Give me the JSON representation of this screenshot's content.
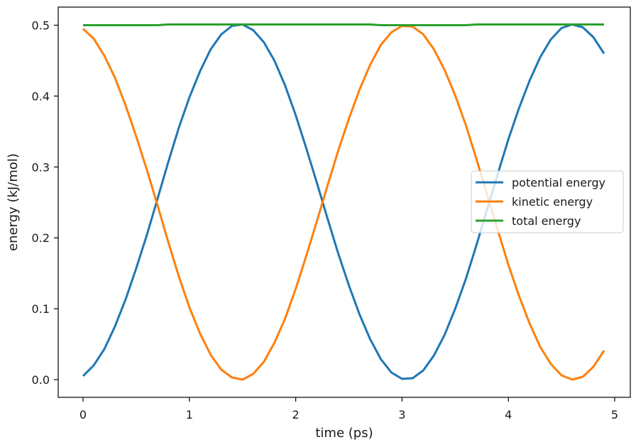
{
  "chart_data": {
    "type": "line",
    "title": "",
    "xlabel": "time (ps)",
    "ylabel": "energy (kJ/mol)",
    "xlim": [
      -0.245,
      5.145
    ],
    "ylim": [
      -0.025,
      0.526
    ],
    "xticks": [
      0,
      1,
      2,
      3,
      4,
      5
    ],
    "xtick_labels": [
      "0",
      "1",
      "2",
      "3",
      "4",
      "5"
    ],
    "yticks": [
      0.0,
      0.1,
      0.2,
      0.3,
      0.4,
      0.5
    ],
    "ytick_labels": [
      "0.0",
      "0.1",
      "0.2",
      "0.3",
      "0.4",
      "0.5"
    ],
    "grid": false,
    "legend_position": "center right",
    "x": [
      0.0,
      0.1,
      0.2,
      0.3,
      0.4,
      0.5,
      0.6,
      0.7,
      0.8,
      0.9,
      1.0,
      1.1,
      1.2,
      1.3,
      1.4,
      1.5,
      1.6,
      1.7,
      1.8,
      1.9,
      2.0,
      2.1,
      2.2,
      2.3,
      2.4,
      2.5,
      2.6,
      2.7,
      2.8,
      2.9,
      3.0,
      3.1,
      3.2,
      3.3,
      3.4,
      3.5,
      3.6,
      3.7,
      3.8,
      3.9,
      4.0,
      4.1,
      4.2,
      4.3,
      4.4,
      4.5,
      4.6,
      4.7,
      4.8,
      4.9
    ],
    "series": [
      {
        "name": "potential energy",
        "color": "#1f77b4",
        "values": [
          0.005,
          0.02,
          0.043,
          0.075,
          0.113,
          0.157,
          0.204,
          0.255,
          0.306,
          0.355,
          0.398,
          0.435,
          0.466,
          0.487,
          0.499,
          0.501,
          0.493,
          0.476,
          0.45,
          0.415,
          0.373,
          0.326,
          0.277,
          0.227,
          0.178,
          0.133,
          0.092,
          0.057,
          0.029,
          0.01,
          0.001,
          0.002,
          0.013,
          0.034,
          0.063,
          0.1,
          0.142,
          0.19,
          0.24,
          0.29,
          0.339,
          0.383,
          0.422,
          0.455,
          0.48,
          0.496,
          0.501,
          0.497,
          0.483,
          0.46
        ]
      },
      {
        "name": "kinetic energy",
        "color": "#ff7f0e",
        "values": [
          0.495,
          0.481,
          0.457,
          0.426,
          0.387,
          0.343,
          0.296,
          0.246,
          0.195,
          0.146,
          0.102,
          0.065,
          0.035,
          0.014,
          0.003,
          0.0,
          0.008,
          0.025,
          0.052,
          0.086,
          0.128,
          0.175,
          0.224,
          0.274,
          0.323,
          0.368,
          0.409,
          0.444,
          0.472,
          0.49,
          0.499,
          0.498,
          0.487,
          0.466,
          0.437,
          0.401,
          0.359,
          0.311,
          0.261,
          0.211,
          0.162,
          0.118,
          0.079,
          0.046,
          0.022,
          0.006,
          0.0,
          0.004,
          0.018,
          0.041
        ]
      },
      {
        "name": "total energy",
        "color": "#2ca02c",
        "values": [
          0.5,
          0.5,
          0.5,
          0.5,
          0.5,
          0.5,
          0.5,
          0.5,
          0.501,
          0.501,
          0.501,
          0.501,
          0.501,
          0.501,
          0.501,
          0.501,
          0.501,
          0.501,
          0.501,
          0.501,
          0.501,
          0.501,
          0.501,
          0.501,
          0.501,
          0.501,
          0.501,
          0.501,
          0.5,
          0.5,
          0.5,
          0.5,
          0.5,
          0.5,
          0.5,
          0.5,
          0.5,
          0.501,
          0.501,
          0.501,
          0.501,
          0.501,
          0.501,
          0.501,
          0.501,
          0.501,
          0.501,
          0.501,
          0.501,
          0.501
        ]
      }
    ]
  }
}
